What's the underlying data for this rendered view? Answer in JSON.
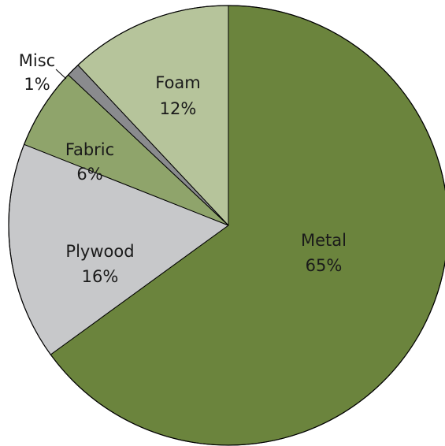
{
  "chart_data": {
    "type": "pie",
    "title": "",
    "start_angle_deg": 0,
    "direction": "clockwise",
    "slices": [
      {
        "name": "Metal",
        "value": 65,
        "label": "65%",
        "color": "#6b843d"
      },
      {
        "name": "Plywood",
        "value": 16,
        "label": "16%",
        "color": "#c7c8ca"
      },
      {
        "name": "Fabric",
        "value": 6,
        "label": "6%",
        "color": "#8fa46b"
      },
      {
        "name": "Misc",
        "value": 1,
        "label": "1%",
        "color": "#8a8b8e"
      },
      {
        "name": "Foam",
        "value": 12,
        "label": "12%",
        "color": "#b6c49b"
      }
    ]
  }
}
